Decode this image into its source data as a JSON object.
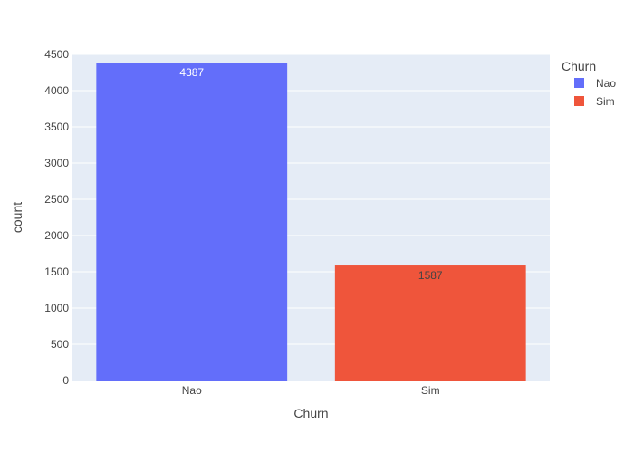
{
  "chart_data": {
    "type": "bar",
    "categories": [
      "Nao",
      "Sim"
    ],
    "values": [
      4387,
      1587
    ],
    "colors": [
      "#636efa",
      "#ef553b"
    ],
    "data_label_colors": [
      "#ffffff",
      "#444444"
    ],
    "xlabel": "Churn",
    "ylabel": "count",
    "ylim": [
      0,
      4500
    ],
    "yticks": [
      0,
      500,
      1000,
      1500,
      2000,
      2500,
      3000,
      3500,
      4000,
      4500
    ],
    "grid": true,
    "legend": {
      "title": "Churn",
      "placement": "top-right",
      "entries": [
        {
          "name": "Nao",
          "color": "#636efa"
        },
        {
          "name": "Sim",
          "color": "#ef553b"
        }
      ]
    },
    "plot_background": "#e5ecf6"
  }
}
